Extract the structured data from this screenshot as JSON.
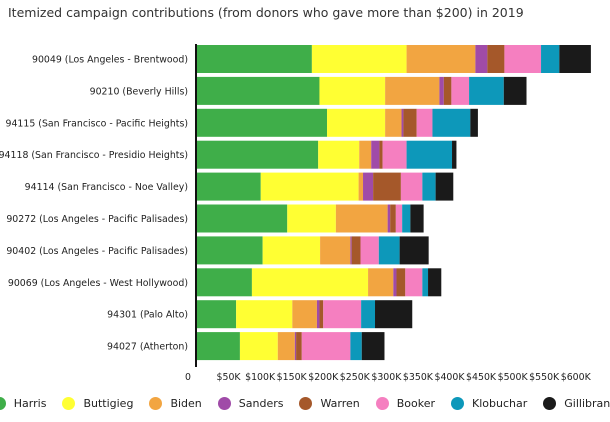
{
  "chart_data": {
    "type": "bar",
    "orientation": "horizontal",
    "stacked": true,
    "title": "Itemized campaign contributions (from donors who gave more than $200) in 2019",
    "xlabel": "",
    "ylabel": "",
    "xlim": [
      0,
      640000
    ],
    "xticks": [
      0,
      50000,
      100000,
      150000,
      200000,
      250000,
      300000,
      350000,
      400000,
      450000,
      500000,
      550000,
      600000
    ],
    "xtick_labels": [
      "0",
      "$50K",
      "$100K",
      "$150K",
      "$200K",
      "$250K",
      "$300K",
      "$350K",
      "$400K",
      "$450K",
      "$500K",
      "$550K",
      "$600K"
    ],
    "legend_position": "bottom",
    "categories": [
      "90049 (Los Angeles - Brentwood)",
      "90210 (Beverly Hills)",
      "94115 (San Francisco - Pacific Heights)",
      "94118 (San Francisco - Presidio Heights)",
      "94114 (San Francisco - Noe Valley)",
      "90272 (Los Angeles - Pacific Palisades)",
      "90402 (Los Angeles - Pacific Palisades)",
      "90069 (Los Angeles - West Hollywood)",
      "94301 (Palo Alto)",
      "94027 (Atherton)"
    ],
    "series": [
      {
        "name": "Harris",
        "color": "#3fae49",
        "values": [
          182000,
          194000,
          206000,
          192000,
          101000,
          143000,
          104000,
          87000,
          62000,
          68000
        ]
      },
      {
        "name": "Buttigieg",
        "color": "#ffff33",
        "values": [
          150000,
          104000,
          92000,
          65000,
          155000,
          77000,
          91000,
          184000,
          89000,
          60000
        ]
      },
      {
        "name": "Biden",
        "color": "#f2a541",
        "values": [
          109000,
          86000,
          26000,
          19000,
          7000,
          82000,
          48000,
          40000,
          39000,
          27000
        ]
      },
      {
        "name": "Sanders",
        "color": "#a04ba8",
        "values": [
          19000,
          7000,
          3000,
          13000,
          16000,
          4000,
          2000,
          5000,
          4000,
          2000
        ]
      },
      {
        "name": "Warren",
        "color": "#a5582a",
        "values": [
          27000,
          12000,
          21000,
          5000,
          44000,
          9000,
          14000,
          14000,
          6000,
          9000
        ]
      },
      {
        "name": "Booker",
        "color": "#f57fc0",
        "values": [
          58000,
          28000,
          25000,
          38000,
          34000,
          10000,
          29000,
          27000,
          60000,
          77000
        ]
      },
      {
        "name": "Klobuchar",
        "color": "#0d98ba",
        "values": [
          29000,
          55000,
          60000,
          72000,
          21000,
          13000,
          33000,
          9000,
          22000,
          18000
        ]
      },
      {
        "name": "Gillibrand",
        "color": "#1a1a1a",
        "values": [
          50000,
          36000,
          12000,
          7000,
          28000,
          21000,
          46000,
          21000,
          59000,
          36000
        ]
      }
    ]
  }
}
